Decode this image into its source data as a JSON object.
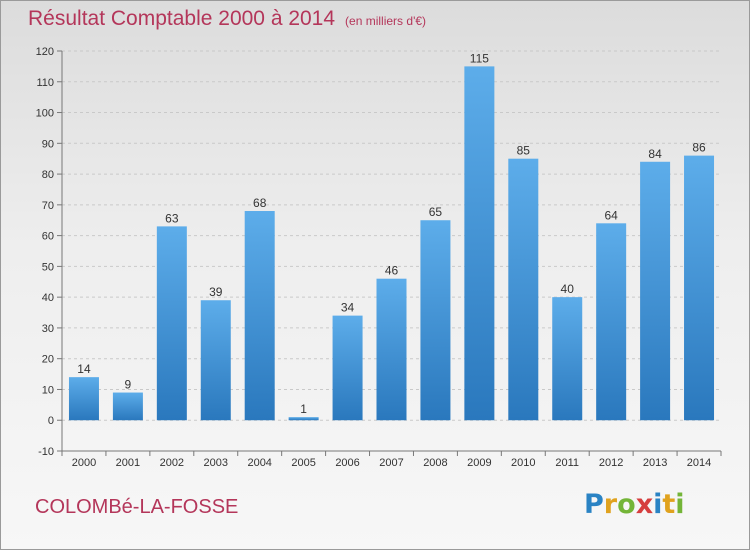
{
  "header": {
    "title": "Résultat Comptable 2000 à 2014",
    "subtitle": "(en milliers d'€)"
  },
  "footer": {
    "commune": "COLOMBé-LA-FOSSE",
    "logo_letters": [
      {
        "ch": "P",
        "color": "#2a83c4"
      },
      {
        "ch": "r",
        "color": "#e0a21e"
      },
      {
        "ch": "o",
        "color": "#74b538"
      },
      {
        "ch": "x",
        "color": "#d63e3e"
      },
      {
        "ch": "i",
        "color": "#2a83c4"
      },
      {
        "ch": "t",
        "color": "#e0a21e"
      },
      {
        "ch": "i",
        "color": "#74b538"
      }
    ]
  },
  "chart_data": {
    "type": "bar",
    "categories": [
      "2000",
      "2001",
      "2002",
      "2003",
      "2004",
      "2005",
      "2006",
      "2007",
      "2008",
      "2009",
      "2010",
      "2011",
      "2012",
      "2013",
      "2014"
    ],
    "values": [
      14,
      9,
      63,
      39,
      68,
      1,
      34,
      46,
      65,
      115,
      85,
      40,
      64,
      84,
      86
    ],
    "title": "Résultat Comptable 2000 à 2014",
    "ylim": [
      -10,
      120
    ],
    "yticks": [
      -10,
      0,
      10,
      20,
      30,
      40,
      50,
      60,
      70,
      80,
      90,
      100,
      110,
      120
    ],
    "grid": true,
    "bar_color": "#3a8fd0"
  }
}
